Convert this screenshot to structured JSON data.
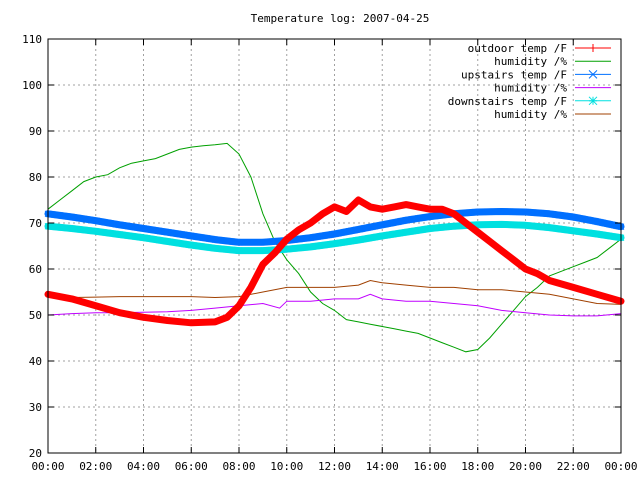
{
  "chart_data": {
    "type": "line",
    "title": "Temperature log: 2007-04-25",
    "xlabel": "",
    "ylabel": "",
    "xlim": [
      0,
      24
    ],
    "ylim": [
      20,
      110
    ],
    "x_ticks": [
      "00:00",
      "02:00",
      "04:00",
      "06:00",
      "08:00",
      "10:00",
      "12:00",
      "14:00",
      "16:00",
      "18:00",
      "20:00",
      "22:00",
      "00:00"
    ],
    "y_ticks": [
      20,
      30,
      40,
      50,
      60,
      70,
      80,
      90,
      100,
      110
    ],
    "grid": true,
    "legend_position": "top-right",
    "series": [
      {
        "name": "outdoor temp /F",
        "color": "#ff0000",
        "marker": "plus",
        "x": [
          0,
          1,
          2,
          3,
          4,
          5,
          6,
          7,
          7.5,
          8,
          8.5,
          9,
          9.5,
          10,
          10.5,
          11,
          11.5,
          12,
          12.5,
          13,
          13.5,
          14,
          14.5,
          15,
          15.5,
          16,
          16.5,
          17,
          17.5,
          18,
          18.5,
          19,
          19.5,
          20,
          20.5,
          21,
          22,
          23,
          24
        ],
        "y": [
          54.5,
          53.5,
          52,
          50.5,
          49.5,
          48.8,
          48.3,
          48.5,
          49.5,
          52,
          56,
          61,
          63.5,
          66.5,
          68.5,
          70,
          72,
          73.5,
          72.5,
          75,
          73.5,
          73,
          73.5,
          74,
          73.5,
          73,
          73,
          72,
          70,
          68,
          66,
          64,
          62,
          60,
          59,
          57.5,
          56,
          54.5,
          53
        ]
      },
      {
        "name": "humidity /%",
        "color": "#00a000",
        "marker": "none",
        "x": [
          0,
          0.5,
          1,
          1.5,
          2,
          2.5,
          3,
          3.5,
          4,
          4.5,
          5,
          5.5,
          6,
          6.5,
          7,
          7.5,
          8,
          8.5,
          9,
          9.5,
          10,
          10.5,
          11,
          11.5,
          12,
          12.5,
          13,
          13.5,
          14,
          14.5,
          15,
          15.5,
          16,
          16.5,
          17,
          17.5,
          18,
          18.5,
          19,
          19.5,
          20,
          20.5,
          21,
          21.5,
          22,
          22.5,
          23,
          23.5,
          24
        ],
        "y": [
          73,
          75,
          77,
          79,
          80,
          80.5,
          82,
          83,
          83.5,
          84,
          85,
          86,
          86.5,
          86.8,
          87,
          87.3,
          85,
          80,
          72,
          66,
          62,
          59,
          55,
          52.5,
          51,
          49,
          48.5,
          48,
          47.5,
          47,
          46.5,
          46,
          45,
          44,
          43,
          42,
          42.5,
          45,
          48,
          51,
          54,
          56,
          58.5,
          59.5,
          60.5,
          61.5,
          62.5,
          64.5,
          66.5
        ]
      },
      {
        "name": "upstairs temp /F",
        "color": "#0070ff",
        "marker": "cross",
        "x": [
          0,
          1,
          2,
          3,
          4,
          5,
          6,
          7,
          8,
          9,
          10,
          11,
          12,
          13,
          14,
          15,
          16,
          17,
          18,
          19,
          20,
          21,
          22,
          23,
          24
        ],
        "y": [
          72,
          71.3,
          70.5,
          69.6,
          68.8,
          68,
          67.2,
          66.4,
          65.8,
          65.8,
          66.2,
          66.8,
          67.6,
          68.6,
          69.6,
          70.6,
          71.4,
          72,
          72.4,
          72.5,
          72.4,
          72,
          71.3,
          70.3,
          69.2
        ]
      },
      {
        "name": "humidity /%",
        "color": "#c000ff",
        "marker": "none",
        "x": [
          0,
          1,
          2,
          3,
          4,
          5,
          6,
          7,
          8,
          9,
          9.7,
          10,
          11,
          12,
          13,
          13.5,
          14,
          15,
          16,
          17,
          18,
          19,
          20,
          21,
          22,
          23,
          24
        ],
        "y": [
          50,
          50.3,
          50.5,
          50.5,
          50.6,
          50.7,
          51,
          51.5,
          52,
          52.5,
          51.5,
          53,
          53,
          53.5,
          53.5,
          54.5,
          53.5,
          53,
          53,
          52.5,
          52,
          51,
          50.5,
          50,
          49.8,
          49.8,
          50.3
        ]
      },
      {
        "name": "downstairs temp /F",
        "color": "#00e0e0",
        "marker": "star",
        "x": [
          0,
          1,
          2,
          3,
          4,
          5,
          6,
          7,
          8,
          9,
          10,
          11,
          12,
          13,
          14,
          15,
          16,
          17,
          18,
          19,
          20,
          21,
          22,
          23,
          24
        ],
        "y": [
          69.3,
          68.8,
          68.2,
          67.5,
          66.8,
          66,
          65.2,
          64.5,
          64,
          64,
          64.3,
          64.8,
          65.5,
          66.3,
          67.2,
          68,
          68.8,
          69.3,
          69.6,
          69.7,
          69.5,
          69,
          68.3,
          67.6,
          66.8
        ]
      },
      {
        "name": "humidity /%",
        "color": "#a04000",
        "marker": "none",
        "x": [
          0,
          1,
          2,
          3,
          4,
          5,
          6,
          7,
          8,
          9,
          10,
          11,
          12,
          13,
          13.5,
          14,
          15,
          16,
          17,
          18,
          19,
          20,
          21,
          22,
          23,
          24
        ],
        "y": [
          54,
          53.8,
          53.9,
          54,
          54,
          54,
          54,
          53.8,
          54,
          55,
          56,
          56,
          56,
          56.5,
          57.5,
          57,
          56.5,
          56,
          56,
          55.5,
          55.5,
          55,
          54.5,
          53.5,
          52.5,
          52.3
        ]
      }
    ]
  }
}
